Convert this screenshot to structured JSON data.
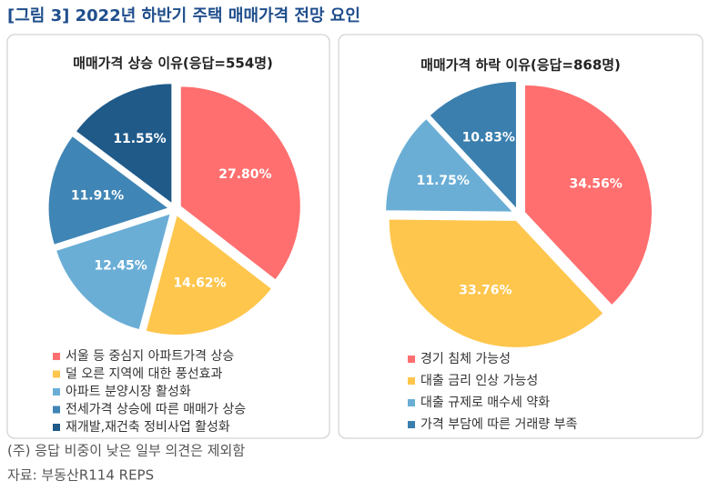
{
  "title": "[그림 3] 2022년 하반기 주택 매매가격 전망 요인",
  "chart_data": [
    {
      "type": "pie",
      "title": "매매가격 상승 이유(응답=554명)",
      "categories": [
        "서울 등 중심지 아파트가격 상승",
        "덜 오른 지역에 대한 풍선효과",
        "아파트 분양시장 활성화",
        "전세가격 상승에 따른 매매가 상승",
        "재개발,재건축 정비사업 활성화"
      ],
      "values": [
        27.8,
        14.62,
        12.45,
        11.91,
        11.55
      ],
      "value_labels": [
        "27.80%",
        "14.62%",
        "12.45%",
        "11.91%",
        "11.55%"
      ],
      "colors": [
        "#ff6f6f",
        "#ffc64d",
        "#6aaed6",
        "#3f85b5",
        "#1f5a89"
      ]
    },
    {
      "type": "pie",
      "title": "매매가격 하락 이유(응답=868명)",
      "categories": [
        "경기 침체 가능성",
        "대출 금리 인상 가능성",
        "대출 규제로 매수세 약화",
        "가격 부담에 따른 거래량 부족"
      ],
      "values": [
        34.56,
        33.76,
        11.75,
        10.83
      ],
      "value_labels": [
        "34.56%",
        "33.76%",
        "11.75%",
        "10.83%"
      ],
      "colors": [
        "#ff6f6f",
        "#ffc64d",
        "#6aaed6",
        "#3a7fae"
      ]
    }
  ],
  "notes": [
    "(주) 응답 비중이 낮은 일부 의견은 제외함",
    "자료: 부동산R114 REPS"
  ]
}
